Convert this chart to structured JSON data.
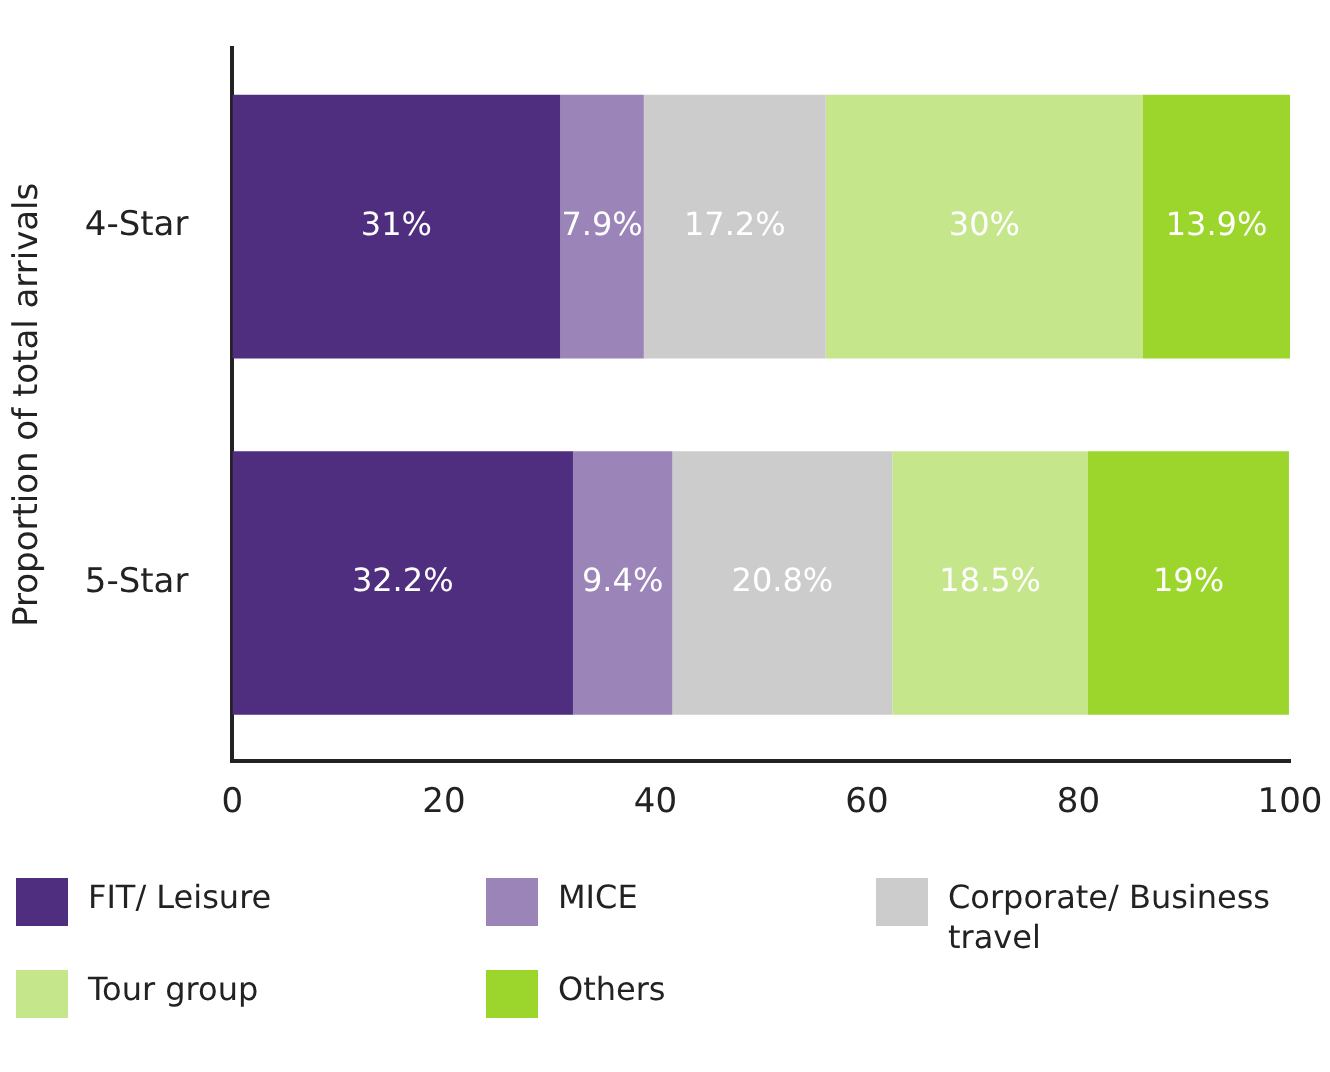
{
  "chart_data": {
    "type": "bar",
    "orientation": "horizontal",
    "stacked": true,
    "ylabel": "Proportion of total arrivals",
    "categories": [
      "4-Star",
      "5-Star"
    ],
    "xlim": [
      0,
      100
    ],
    "xticks": [
      0,
      20,
      40,
      60,
      80,
      100
    ],
    "grid": false,
    "legend": "bottom",
    "series": [
      {
        "name": "FIT/ Leisure",
        "color": "#4f2d7f",
        "values": [
          31,
          32.2
        ],
        "value_labels": [
          "31%",
          "32.2%"
        ]
      },
      {
        "name": "MICE",
        "color": "#9a84b8",
        "values": [
          7.9,
          9.4
        ],
        "value_labels": [
          "7.9%",
          "9.4%"
        ]
      },
      {
        "name": "Corporate/ Business travel",
        "color": "#cccccc",
        "values": [
          17.2,
          20.8
        ],
        "value_labels": [
          "17.2%",
          "20.8%"
        ]
      },
      {
        "name": "Tour group",
        "color": "#c5e68a",
        "values": [
          30,
          18.5
        ],
        "value_labels": [
          "30%",
          "18.5%"
        ]
      },
      {
        "name": "Others",
        "color": "#9cd52c",
        "values": [
          13.9,
          19
        ],
        "value_labels": [
          "13.9%",
          "19%"
        ]
      }
    ]
  }
}
